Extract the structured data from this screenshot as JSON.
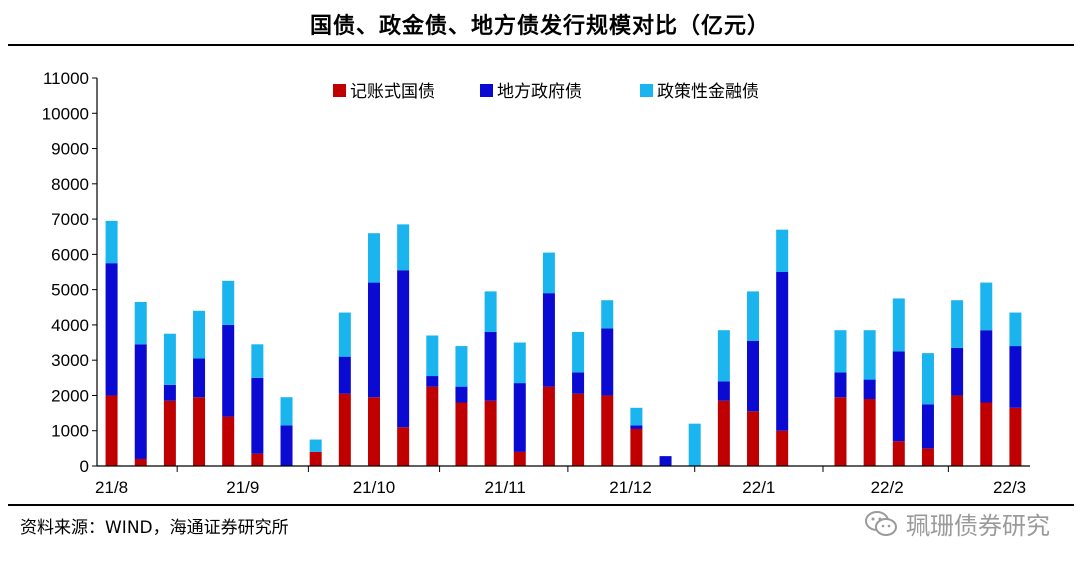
{
  "title": "国债、政金债、地方债发行规模对比（亿元）",
  "source": "资料来源：WIND，海通证券研究所",
  "watermark": "珮珊债券研究",
  "colors": {
    "series1": "#c00000",
    "series2": "#0a0ad2",
    "series3": "#1ab4ee"
  },
  "chart_data": {
    "type": "bar",
    "stacked": true,
    "title": "国债、政金债、地方债发行规模对比（亿元）",
    "xlabel": "",
    "ylabel": "",
    "ylim": [
      0,
      11000
    ],
    "yticks": [
      0,
      1000,
      2000,
      3000,
      4000,
      5000,
      6000,
      7000,
      8000,
      9000,
      10000,
      11000
    ],
    "legend_position": "top-center",
    "grid": false,
    "month_labels": [
      {
        "label": "21/8",
        "bar_index": 0
      },
      {
        "label": "21/9",
        "bar_index": 4.5
      },
      {
        "label": "21/10",
        "bar_index": 9
      },
      {
        "label": "21/11",
        "bar_index": 13.5
      },
      {
        "label": "21/12",
        "bar_index": 17.8
      },
      {
        "label": "22/1",
        "bar_index": 22.2
      },
      {
        "label": "22/2",
        "bar_index": 26.6
      },
      {
        "label": "22/3",
        "bar_index": 30.8
      }
    ],
    "series": [
      {
        "name": "记账式国债",
        "color": "#c00000",
        "values": [
          2000,
          200,
          1850,
          1950,
          1400,
          350,
          0,
          400,
          2050,
          1950,
          1100,
          2250,
          1800,
          1850,
          400,
          2250,
          2050,
          2000,
          1050,
          0,
          0,
          1850,
          1550,
          1000,
          0,
          1950,
          1900,
          700,
          500,
          2000,
          1800,
          1650
        ]
      },
      {
        "name": "地方政府债",
        "color": "#0a0ad2",
        "values": [
          3750,
          3250,
          450,
          1100,
          2600,
          2150,
          1150,
          0,
          1050,
          3250,
          4450,
          300,
          450,
          1950,
          1950,
          2650,
          600,
          1900,
          100,
          280,
          0,
          550,
          2000,
          4500,
          0,
          700,
          550,
          2550,
          1250,
          1350,
          2050,
          1750
        ]
      },
      {
        "name": "政策性金融债",
        "color": "#1ab4ee",
        "values": [
          1200,
          1200,
          1450,
          1350,
          1250,
          950,
          800,
          350,
          1250,
          1400,
          1300,
          1150,
          1150,
          1150,
          1150,
          1150,
          1150,
          800,
          500,
          0,
          1200,
          1450,
          1400,
          1200,
          0,
          1200,
          1400,
          1500,
          1450,
          1350,
          1350,
          950
        ]
      }
    ]
  }
}
